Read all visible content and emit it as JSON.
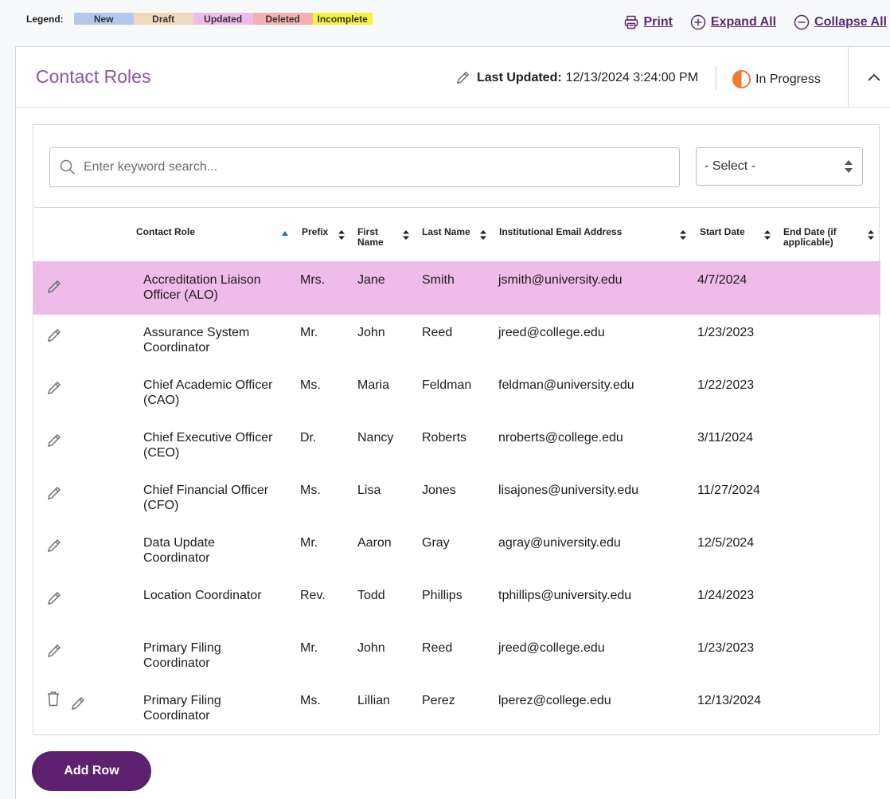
{
  "legend": {
    "title": "Legend:",
    "items": [
      {
        "label": "New",
        "color": "#b3c9ec"
      },
      {
        "label": "Draft",
        "color": "#efd9bd"
      },
      {
        "label": "Updated",
        "color": "#efbbe8"
      },
      {
        "label": "Deleted",
        "color": "#f4b1b1"
      },
      {
        "label": "Incomplete",
        "color": "#f7f43c"
      }
    ]
  },
  "actions": {
    "print": "Print",
    "expand_all": "Expand All",
    "collapse_all": "Collapse All"
  },
  "section": {
    "title": "Contact Roles",
    "last_updated_label": "Last Updated:",
    "last_updated_value": "12/13/2024 3:24:00 PM",
    "status": "In Progress"
  },
  "search": {
    "placeholder": "Enter keyword search...",
    "select_value": "- Select -"
  },
  "columns": {
    "role": "Contact Role",
    "prefix": "Prefix",
    "first_name": "First Name",
    "last_name": "Last Name",
    "email": "Institutional Email Address",
    "start_date": "Start Date",
    "end_date": "End Date (if applicable)"
  },
  "rows": [
    {
      "role": "Accreditation Liaison Officer (ALO)",
      "prefix": "Mrs.",
      "first": "Jane",
      "last": "Smith",
      "email": "jsmith@university.edu",
      "start": "4/7/2024",
      "end": "",
      "status": "Updated"
    },
    {
      "role": "Assurance System Coordinator",
      "prefix": "Mr.",
      "first": "John",
      "last": "Reed",
      "email": "jreed@college.edu",
      "start": "1/23/2023",
      "end": ""
    },
    {
      "role": "Chief Academic Officer (CAO)",
      "prefix": "Ms.",
      "first": "Maria",
      "last": "Feldman",
      "email": "feldman@university.edu",
      "start": "1/22/2023",
      "end": ""
    },
    {
      "role": "Chief Executive Officer (CEO)",
      "prefix": "Dr.",
      "first": "Nancy",
      "last": "Roberts",
      "email": "nroberts@college.edu",
      "start": "3/11/2024",
      "end": ""
    },
    {
      "role": "Chief Financial Officer (CFO)",
      "prefix": "Ms.",
      "first": "Lisa",
      "last": "Jones",
      "email": "lisajones@university.edu",
      "start": "11/27/2024",
      "end": ""
    },
    {
      "role": "Data Update Coordinator",
      "prefix": "Mr.",
      "first": "Aaron",
      "last": "Gray",
      "email": "agray@university.edu",
      "start": "12/5/2024",
      "end": ""
    },
    {
      "role": "Location Coordinator",
      "prefix": "Rev.",
      "first": "Todd",
      "last": "Phillips",
      "email": "tphillips@university.edu",
      "start": "1/24/2023",
      "end": ""
    },
    {
      "role": "Primary Filing Coordinator",
      "prefix": "Mr.",
      "first": "John",
      "last": "Reed",
      "email": "jreed@college.edu",
      "start": "1/23/2023",
      "end": ""
    },
    {
      "role": "Primary Filing Coordinator",
      "prefix": "Ms.",
      "first": "Lillian",
      "last": "Perez",
      "email": "lperez@college.edu",
      "start": "12/13/2024",
      "end": "",
      "deletable": true
    }
  ],
  "buttons": {
    "add_row": "Add Row"
  },
  "icons": {
    "print": "printer-icon",
    "expand": "plus-circle-icon",
    "collapse": "minus-circle-icon",
    "edit": "pencil-icon",
    "status": "half-circle-icon",
    "chevron": "chevron-up-icon",
    "search": "search-icon",
    "delete": "trash-icon",
    "sort": "sort-icon"
  },
  "colors": {
    "brand": "#5e2170",
    "title": "#8a55a8",
    "status_orange": "#f07a2d"
  }
}
